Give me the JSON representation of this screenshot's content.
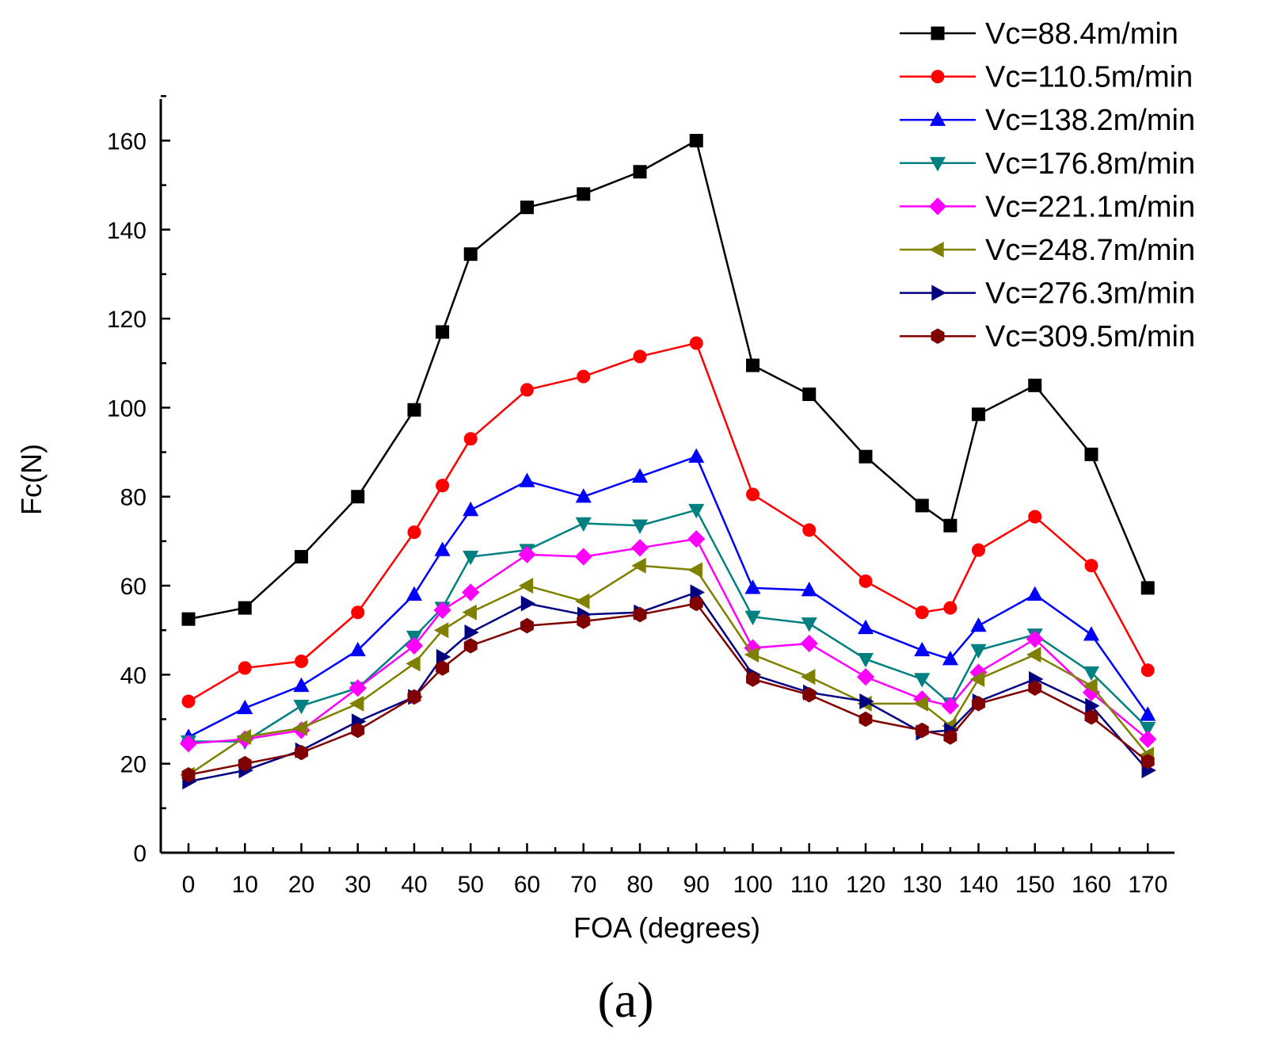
{
  "chart_data": {
    "type": "line",
    "xlabel": "FOA (degrees)",
    "ylabel": "Fc(N)",
    "caption": "(a)",
    "x": [
      0,
      10,
      20,
      30,
      40,
      45,
      50,
      60,
      70,
      80,
      90,
      100,
      110,
      120,
      130,
      135,
      140,
      150,
      160,
      170
    ],
    "x_tick_labels": [
      "0",
      "10",
      "20",
      "30",
      "40",
      "50",
      "60",
      "70",
      "80",
      "90",
      "100",
      "110",
      "120",
      "130",
      "140",
      "150",
      "160",
      "170"
    ],
    "y_tick_labels": [
      "0",
      "20",
      "40",
      "60",
      "80",
      "100",
      "120",
      "140",
      "160"
    ],
    "ylim": [
      0,
      170
    ],
    "legend_position": "top-right",
    "series": [
      {
        "name": "Vc=88.4m/min",
        "color": "#000000",
        "marker": "square",
        "values": [
          52.5,
          55,
          66.5,
          80,
          99.5,
          117,
          134.5,
          145,
          148,
          153,
          160,
          109.5,
          103,
          89,
          78,
          73.5,
          98.5,
          105,
          89.5,
          59.5
        ]
      },
      {
        "name": "Vc=110.5m/min",
        "color": "#ff0000",
        "marker": "circle",
        "values": [
          34,
          41.5,
          43,
          54,
          72,
          82.5,
          93,
          104,
          107,
          111.5,
          114.5,
          80.5,
          72.5,
          61,
          54,
          55,
          68,
          75.5,
          64.5,
          41
        ]
      },
      {
        "name": "Vc=138.2m/min",
        "color": "#0000ff",
        "marker": "triangle-up",
        "values": [
          26,
          32.5,
          37.5,
          45.5,
          58,
          68,
          77,
          83.5,
          80,
          84.5,
          89,
          59.5,
          59,
          50.5,
          45.5,
          43.5,
          51,
          58,
          49,
          31
        ]
      },
      {
        "name": "Vc=176.8m/min",
        "color": "#008080",
        "marker": "triangle-down",
        "values": [
          25,
          25,
          33,
          37,
          48.5,
          55,
          66.5,
          68,
          74,
          73.5,
          77,
          53,
          51.5,
          43.5,
          39,
          33.5,
          45.5,
          49,
          40.5,
          28
        ]
      },
      {
        "name": "Vc=221.1m/min",
        "color": "#ff00ff",
        "marker": "diamond",
        "values": [
          24.5,
          25.5,
          27.5,
          37,
          46.5,
          54.5,
          58.5,
          67,
          66.5,
          68.5,
          70.5,
          46,
          47,
          39.5,
          34.5,
          33,
          40.5,
          48,
          36,
          25.5
        ]
      },
      {
        "name": "Vc=248.7m/min",
        "color": "#808000",
        "marker": "triangle-left",
        "values": [
          17.5,
          26,
          28,
          33.5,
          42.5,
          50,
          54,
          60,
          56.5,
          64.5,
          63.5,
          44.5,
          39.5,
          33.5,
          33.5,
          28.5,
          39,
          44.5,
          37.5,
          22
        ]
      },
      {
        "name": "Vc=276.3m/min",
        "color": "#000080",
        "marker": "triangle-right",
        "values": [
          16,
          18.5,
          23,
          29.5,
          35,
          44,
          49.5,
          56,
          53.5,
          54,
          58.5,
          40,
          36,
          34,
          27,
          27.5,
          34,
          39,
          33,
          18.5
        ]
      },
      {
        "name": "Vc=309.5m/min",
        "color": "#800000",
        "marker": "hexagon",
        "values": [
          17.5,
          20,
          22.5,
          27.5,
          35,
          41.5,
          46.5,
          51,
          52,
          53.5,
          56,
          39,
          35.5,
          30,
          27.5,
          26,
          33.5,
          37,
          30.5,
          20.5
        ]
      }
    ]
  }
}
